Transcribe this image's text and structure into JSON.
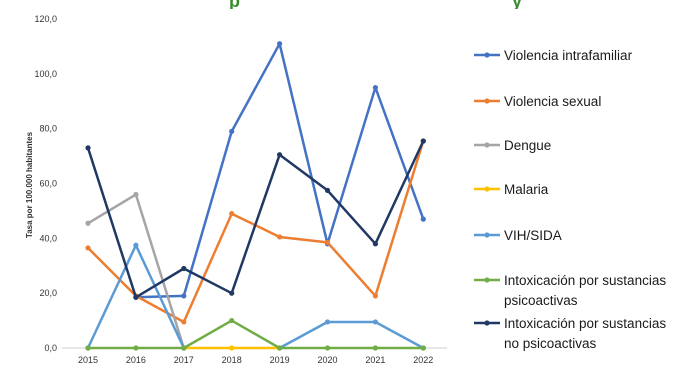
{
  "chart_data": {
    "type": "line",
    "title": "",
    "ylabel": "Tasa por 100.000 habitantes",
    "xlabel": "",
    "categories": [
      "2015",
      "2016",
      "2017",
      "2018",
      "2019",
      "2020",
      "2021",
      "2022"
    ],
    "y_ticks": [
      "0,0",
      "20,0",
      "40,0",
      "60,0",
      "80,0",
      "100,0",
      "120,0"
    ],
    "ylim": [
      0,
      120
    ],
    "grid": false,
    "legend_position": "right",
    "series": [
      {
        "name": "Violencia intrafamiliar",
        "color": "#4472C4",
        "values": [
          null,
          18.5,
          19,
          79,
          111,
          38,
          95,
          47
        ]
      },
      {
        "name": "Violencia sexual",
        "color": "#ED7D31",
        "values": [
          36.5,
          19,
          9.5,
          49,
          40.5,
          38.5,
          19,
          75.5
        ]
      },
      {
        "name": "Dengue",
        "color": "#A5A5A5",
        "values": [
          45.5,
          56,
          0,
          null,
          null,
          null,
          null,
          null
        ]
      },
      {
        "name": "Malaria",
        "color": "#FFC000",
        "values": [
          null,
          null,
          0,
          0,
          0,
          null,
          null,
          null
        ]
      },
      {
        "name": "VIH/SIDA",
        "color": "#5B9BD5",
        "values": [
          0,
          37.5,
          0,
          null,
          0,
          9.5,
          9.5,
          0
        ]
      },
      {
        "name": "Intoxicación por sustancias psicoactivas",
        "color": "#70AD47",
        "values": [
          0,
          0,
          0,
          10,
          0,
          0,
          0,
          0
        ]
      },
      {
        "name": "Intoxicación por sustancias no psicoactivas",
        "color": "#203864",
        "values": [
          73,
          18.5,
          29,
          20,
          70.5,
          57.5,
          38,
          75.5
        ]
      }
    ]
  },
  "title_fragments": [
    "p",
    "y"
  ],
  "legend_lines": [
    [
      "Violencia intrafamiliar"
    ],
    [
      "Violencia sexual"
    ],
    [
      "Dengue"
    ],
    [
      "Malaria"
    ],
    [
      "VIH/SIDA"
    ],
    [
      "Intoxicación por sustancias",
      "psicoactivas"
    ],
    [
      "Intoxicación por sustancias",
      "no psicoactivas"
    ]
  ]
}
